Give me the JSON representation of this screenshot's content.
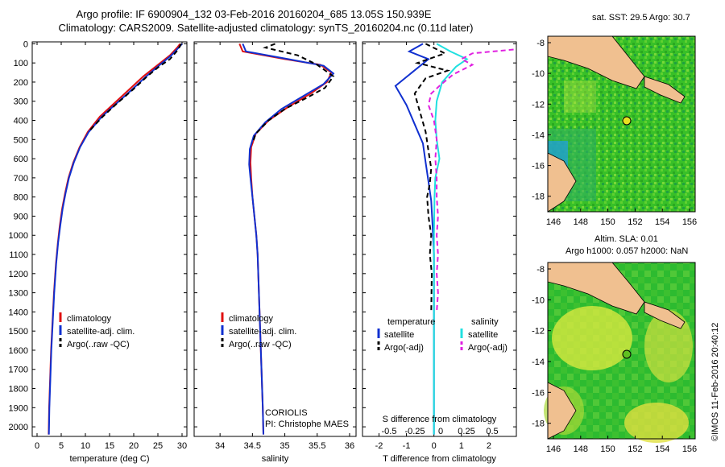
{
  "header": {
    "line1": "Argo profile: IF 6900904_132 03-Feb-2016 20160204_685 13.05S 150.939E",
    "line2": "Climatology: CARS2009. Satellite-adjusted climatology: synTS_20160204.nc (0.11d later)"
  },
  "depth_ticks": [
    0,
    100,
    200,
    300,
    400,
    500,
    600,
    700,
    800,
    900,
    1000,
    1100,
    1200,
    1300,
    1400,
    1500,
    1600,
    1700,
    1800,
    1900,
    2000
  ],
  "colors": {
    "clim": "#e01010",
    "sat": "#1030d0",
    "argo": "#000000",
    "sat_sal": "#20e0e0",
    "argo_sal": "#e020e0"
  },
  "chart_data": [
    {
      "type": "line",
      "name": "temperature",
      "xlabel": "temperature (deg C)",
      "xlim": [
        -1,
        31
      ],
      "ylim": [
        2050,
        -10
      ],
      "xticks": [
        0,
        5,
        10,
        15,
        20,
        25,
        30
      ],
      "legend": [
        "climatology",
        "satellite-adj. clim.",
        "Argo(..raw -QC)"
      ],
      "series": [
        {
          "name": "climatology",
          "color": "clim",
          "dash": false,
          "points": [
            [
              29.6,
              0
            ],
            [
              29,
              20
            ],
            [
              27.5,
              60
            ],
            [
              25,
              110
            ],
            [
              22,
              170
            ],
            [
              19,
              240
            ],
            [
              16,
              310
            ],
            [
              13,
              380
            ],
            [
              10.5,
              460
            ],
            [
              8.8,
              540
            ],
            [
              7.5,
              620
            ],
            [
              6.5,
              700
            ],
            [
              5.8,
              780
            ],
            [
              5.2,
              860
            ],
            [
              4.7,
              950
            ],
            [
              4.3,
              1040
            ],
            [
              3.9,
              1150
            ],
            [
              3.5,
              1300
            ],
            [
              3.2,
              1450
            ],
            [
              2.9,
              1600
            ],
            [
              2.7,
              1750
            ],
            [
              2.5,
              1900
            ],
            [
              2.4,
              2040
            ]
          ]
        },
        {
          "name": "satellite-adj. clim.",
          "color": "sat",
          "dash": false,
          "points": [
            [
              30,
              0
            ],
            [
              29.3,
              20
            ],
            [
              27.8,
              60
            ],
            [
              25.4,
              110
            ],
            [
              22.6,
              170
            ],
            [
              19.6,
              240
            ],
            [
              16.5,
              310
            ],
            [
              13.4,
              380
            ],
            [
              10.7,
              460
            ],
            [
              8.9,
              540
            ],
            [
              7.6,
              620
            ],
            [
              6.6,
              700
            ],
            [
              5.9,
              780
            ],
            [
              5.3,
              860
            ],
            [
              4.8,
              950
            ],
            [
              4.35,
              1040
            ],
            [
              3.95,
              1150
            ],
            [
              3.55,
              1300
            ],
            [
              3.25,
              1450
            ],
            [
              2.95,
              1600
            ],
            [
              2.75,
              1750
            ],
            [
              2.55,
              1900
            ],
            [
              2.45,
              2040
            ]
          ]
        },
        {
          "name": "Argo",
          "color": "argo",
          "dash": true,
          "points": [
            [
              29.8,
              0
            ],
            [
              29.2,
              30
            ],
            [
              27.5,
              80
            ],
            [
              25.2,
              120
            ],
            [
              22.8,
              170
            ],
            [
              19.8,
              240
            ],
            [
              16.6,
              310
            ],
            [
              13.6,
              380
            ],
            [
              11,
              450
            ]
          ]
        }
      ]
    },
    {
      "type": "line",
      "name": "salinity",
      "xlabel": "salinity",
      "xlim": [
        33.6,
        36.1
      ],
      "ylim": [
        2050,
        -10
      ],
      "xticks": [
        34,
        34.5,
        35,
        35.5,
        36
      ],
      "legend": [
        "climatology",
        "satellite-adj. clim.",
        "Argo(..raw -QC)"
      ],
      "annotation": [
        "CORIOLIS",
        "PI: Christophe MAES"
      ],
      "series": [
        {
          "name": "climatology",
          "color": "clim",
          "dash": false,
          "points": [
            [
              34.3,
              0
            ],
            [
              34.35,
              40
            ],
            [
              35,
              80
            ],
            [
              35.55,
              110
            ],
            [
              35.72,
              150
            ],
            [
              35.65,
              200
            ],
            [
              35.4,
              260
            ],
            [
              35.05,
              330
            ],
            [
              34.75,
              400
            ],
            [
              34.55,
              470
            ],
            [
              34.48,
              540
            ],
            [
              34.47,
              620
            ],
            [
              34.48,
              700
            ],
            [
              34.5,
              800
            ],
            [
              34.53,
              900
            ],
            [
              34.56,
              1000
            ],
            [
              34.58,
              1100
            ],
            [
              34.6,
              1300
            ],
            [
              34.62,
              1500
            ],
            [
              34.64,
              1700
            ],
            [
              34.66,
              1900
            ],
            [
              34.67,
              2040
            ]
          ]
        },
        {
          "name": "satellite-adj. clim.",
          "color": "sat",
          "dash": false,
          "points": [
            [
              34.35,
              0
            ],
            [
              34.4,
              40
            ],
            [
              35.05,
              80
            ],
            [
              35.6,
              115
            ],
            [
              35.75,
              155
            ],
            [
              35.6,
              210
            ],
            [
              35.3,
              270
            ],
            [
              34.95,
              340
            ],
            [
              34.7,
              410
            ],
            [
              34.52,
              480
            ],
            [
              34.46,
              550
            ],
            [
              34.45,
              630
            ],
            [
              34.47,
              700
            ],
            [
              34.5,
              800
            ],
            [
              34.53,
              900
            ],
            [
              34.56,
              1000
            ],
            [
              34.58,
              1100
            ],
            [
              34.6,
              1300
            ],
            [
              34.62,
              1500
            ],
            [
              34.64,
              1700
            ],
            [
              34.66,
              1900
            ],
            [
              34.67,
              2040
            ]
          ]
        },
        {
          "name": "Argo",
          "color": "argo",
          "dash": true,
          "points": [
            [
              34.85,
              0
            ],
            [
              34.7,
              20
            ],
            [
              35.2,
              60
            ],
            [
              35.5,
              110
            ],
            [
              35.75,
              170
            ],
            [
              35.62,
              230
            ],
            [
              35.35,
              280
            ],
            [
              35.0,
              340
            ],
            [
              34.75,
              400
            ],
            [
              34.55,
              470
            ],
            [
              34.5,
              520
            ]
          ]
        }
      ]
    },
    {
      "type": "line",
      "name": "difference",
      "xlabel": "T difference from climatology",
      "xlabel2": "S difference from climatology",
      "xlim": [
        -2.6,
        3.0
      ],
      "ylim": [
        2050,
        -10
      ],
      "xticks": [
        -2,
        -1,
        0,
        1,
        2
      ],
      "sticks": [
        "-0.5",
        "-0.25",
        "0",
        "0.25",
        "0.5"
      ],
      "legend_t": [
        "temperature",
        "satellite",
        "Argo(-adj)"
      ],
      "legend_s": [
        "salinity",
        "satellite",
        "Argo(-adj)"
      ],
      "series": [
        {
          "name": "T satellite",
          "color": "sat",
          "dash": false,
          "points": [
            [
              -0.4,
              0
            ],
            [
              -0.9,
              40
            ],
            [
              -0.2,
              80
            ],
            [
              -1.4,
              220
            ],
            [
              -1.0,
              320
            ],
            [
              -0.7,
              420
            ],
            [
              -0.4,
              520
            ],
            [
              -0.3,
              620
            ],
            [
              -0.2,
              720
            ],
            [
              -0.1,
              820
            ],
            [
              -0.05,
              950
            ],
            [
              0,
              1100
            ],
            [
              0,
              1300
            ],
            [
              0,
              1600
            ],
            [
              0,
              2040
            ]
          ]
        },
        {
          "name": "T Argo",
          "color": "argo",
          "dash": true,
          "points": [
            [
              -0.3,
              0
            ],
            [
              0.4,
              50
            ],
            [
              -0.6,
              100
            ],
            [
              0.5,
              140
            ],
            [
              -0.3,
              180
            ],
            [
              -0.7,
              260
            ],
            [
              -0.5,
              360
            ],
            [
              -0.3,
              460
            ],
            [
              -0.2,
              560
            ],
            [
              -0.1,
              650
            ],
            [
              -0.15,
              730
            ],
            [
              -0.25,
              800
            ],
            [
              -0.2,
              900
            ],
            [
              -0.1,
              1000
            ],
            [
              -0.15,
              1100
            ],
            [
              -0.08,
              1200
            ],
            [
              -0.1,
              1400
            ]
          ]
        },
        {
          "name": "S satellite",
          "color": "sat_sal",
          "dash": false,
          "points": [
            [
              0.1,
              0
            ],
            [
              0.6,
              40
            ],
            [
              1.2,
              80
            ],
            [
              0.8,
              120
            ],
            [
              0.3,
              200
            ],
            [
              0.1,
              300
            ],
            [
              0.05,
              400
            ],
            [
              0.1,
              500
            ],
            [
              0.2,
              600
            ],
            [
              0.05,
              700
            ],
            [
              0.02,
              800
            ],
            [
              0,
              1000
            ],
            [
              0,
              1300
            ],
            [
              0,
              1600
            ],
            [
              0,
              2040
            ]
          ]
        },
        {
          "name": "S Argo",
          "color": "argo_sal",
          "dash": true,
          "points": [
            [
              2.9,
              30
            ],
            [
              1.4,
              50
            ],
            [
              1.0,
              80
            ],
            [
              1.4,
              110
            ],
            [
              0.7,
              160
            ],
            [
              0.2,
              220
            ],
            [
              -0.1,
              260
            ],
            [
              -0.2,
              320
            ],
            [
              0.0,
              400
            ],
            [
              0.1,
              500
            ],
            [
              0.05,
              600
            ],
            [
              0.1,
              700
            ],
            [
              0.1,
              800
            ],
            [
              0.15,
              900
            ],
            [
              0.1,
              1000
            ],
            [
              0.15,
              1100
            ],
            [
              0.1,
              1200
            ],
            [
              0.15,
              1300
            ],
            [
              0.1,
              1400
            ]
          ]
        }
      ]
    }
  ],
  "maps": {
    "top_title": "sat. SST: 29.5 Argo: 30.7",
    "bottom_title1": "Altim. SLA: 0.01",
    "bottom_title2": "Argo h1000: 0.057 h2000: NaN",
    "lon_ticks": [
      "146",
      "148",
      "150",
      "152",
      "154",
      "156"
    ],
    "lat_ticks": [
      "-8",
      "-10",
      "-12",
      "-14",
      "-16",
      "-18"
    ],
    "stamp": "©IMOS 11-Feb-2016 20:40:12"
  }
}
